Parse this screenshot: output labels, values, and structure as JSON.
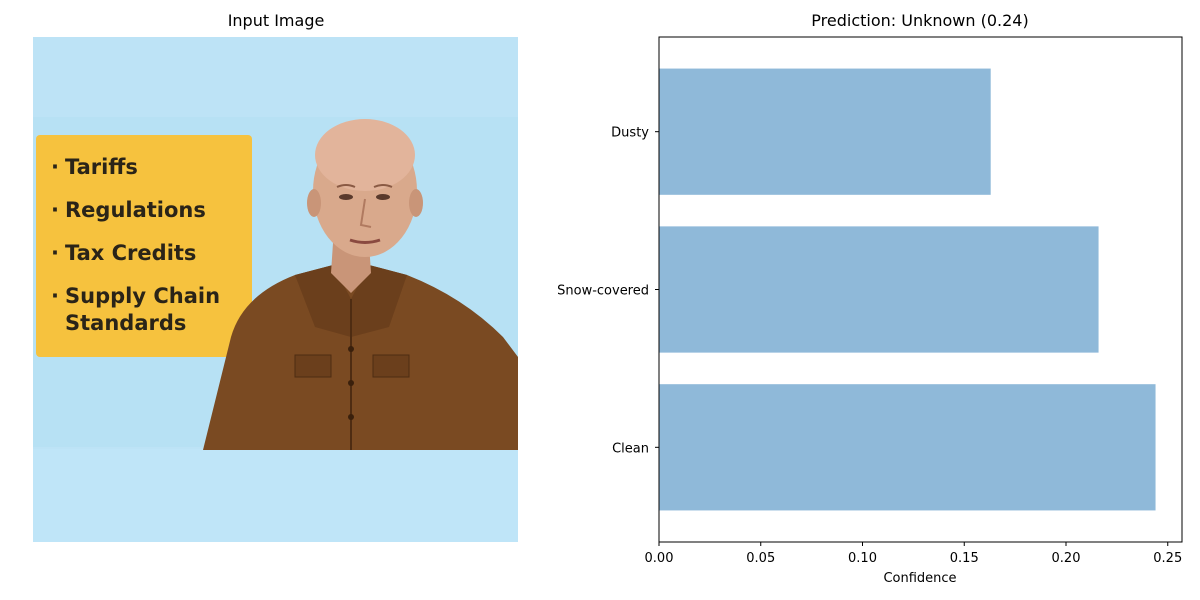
{
  "left_panel": {
    "title": "Input Image",
    "image": {
      "bullets": [
        "Tariffs",
        "Regulations",
        "Tax Credits",
        "Supply Chain",
        "Standards"
      ],
      "card_color": "#f6c23e",
      "background_color": "#bde3f6"
    }
  },
  "chart_data": {
    "type": "bar",
    "orientation": "horizontal",
    "title": "Prediction: Unknown (0.24)",
    "categories": [
      "Clean",
      "Snow-covered",
      "Dusty"
    ],
    "values": [
      0.244,
      0.216,
      0.163
    ],
    "xlabel": "Confidence",
    "ylabel": "",
    "xlim": [
      0,
      0.257
    ],
    "xticks": [
      "0.00",
      "0.05",
      "0.10",
      "0.15",
      "0.20",
      "0.25"
    ],
    "bar_color": "#8fb9d9",
    "grid": false
  }
}
